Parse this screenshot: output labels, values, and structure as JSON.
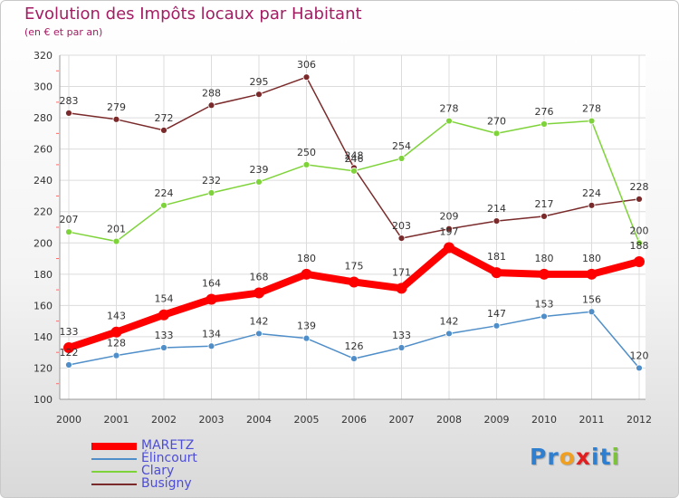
{
  "title": "Evolution des Impôts locaux par Habitant",
  "subtitle": "(en € et par an)",
  "chart_data": {
    "type": "line",
    "title": "Evolution des Impôts locaux par Habitant",
    "subtitle": "(en € et par an)",
    "x": [
      "2000",
      "2001",
      "2002",
      "2003",
      "2004",
      "2005",
      "2006",
      "2007",
      "2008",
      "2009",
      "2010",
      "2011",
      "2012"
    ],
    "ylim": [
      100,
      320
    ],
    "yticks": [
      "100",
      "120",
      "140",
      "160",
      "180",
      "200",
      "220",
      "240",
      "260",
      "280",
      "300",
      "320"
    ],
    "grid": true,
    "legend_position": "bottom-left",
    "series": [
      {
        "name": "MARETZ",
        "color": "#ff0000",
        "values": [
          133,
          143,
          154,
          164,
          168,
          180,
          175,
          171,
          197,
          181,
          180,
          180,
          188
        ]
      },
      {
        "name": "Élincourt",
        "color": "#4f8ec8",
        "values": [
          122,
          128,
          133,
          134,
          142,
          139,
          126,
          133,
          142,
          147,
          153,
          156,
          120
        ]
      },
      {
        "name": "Clary",
        "color": "#7fd33a",
        "values": [
          207,
          201,
          224,
          232,
          239,
          250,
          246,
          254,
          278,
          270,
          276,
          278,
          200
        ]
      },
      {
        "name": "Busigny",
        "color": "#7a2a2a",
        "values": [
          283,
          279,
          272,
          288,
          295,
          306,
          248,
          203,
          209,
          214,
          217,
          224,
          228
        ]
      }
    ]
  },
  "logo": {
    "letters": [
      "P",
      "r",
      "o",
      "x",
      "i",
      "t",
      "i"
    ],
    "colors": [
      "#2f7fd0",
      "#2f7fd0",
      "#f0a020",
      "#e02020",
      "#2f7fd0",
      "#2f7fd0",
      "#7cc23a"
    ]
  }
}
